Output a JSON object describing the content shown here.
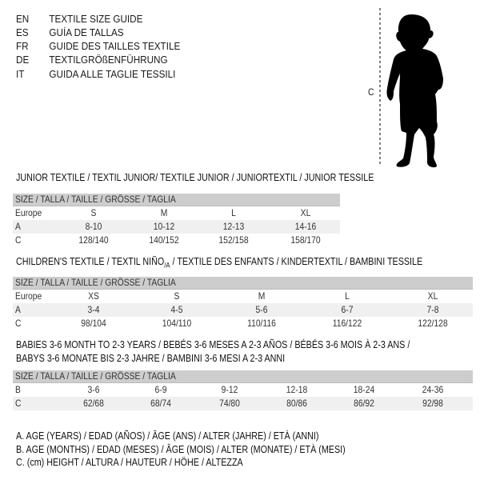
{
  "languages": [
    {
      "code": "EN",
      "title": "TEXTILE SIZE GUIDE"
    },
    {
      "code": "ES",
      "title": "GUÍA DE TALLAS"
    },
    {
      "code": "FR",
      "title": "GUIDE DES TAILLES TEXTILE"
    },
    {
      "code": "DE",
      "title": "TEXTILGRÖßENFÜHRUNG"
    },
    {
      "code": "IT",
      "title": "GUIDA ALLE TAGLIE TESSILI"
    }
  ],
  "figure": {
    "measure_label": "C",
    "icon": "child-silhouette"
  },
  "junior": {
    "title": "JUNIOR TEXTILE / TEXTIL JUNIOR/ TEXTILE JUNIOR / JUNIORTEXTIL / JUNIOR TESSILE",
    "header": "SIZE / TALLA / TAILLE / GRÖSSE / TAGLIA",
    "rows": [
      {
        "label": "Europe",
        "values": [
          "S",
          "M",
          "L",
          "XL"
        ]
      },
      {
        "label": "A",
        "values": [
          "8-10",
          "10-12",
          "12-13",
          "14-16"
        ]
      },
      {
        "label": "C",
        "values": [
          "128/140",
          "140/152",
          "152/158",
          "158/170"
        ]
      }
    ]
  },
  "children": {
    "title": "CHILDREN'S TEXTILE / TEXTIL NIÑO",
    "title_sub": "/A",
    "title_rest": " / TEXTILE DES ENFANTS / KINDERTEXTIL / BAMBINI TESSILE",
    "header": "SIZE / TALLA / TAILLE / GRÖSSE / TAGLIA",
    "rows": [
      {
        "label": "Europe",
        "values": [
          "XS",
          "S",
          "M",
          "L",
          "XL"
        ]
      },
      {
        "label": "A",
        "values": [
          "3-4",
          "4-5",
          "5-6",
          "6-7",
          "7-8"
        ]
      },
      {
        "label": "C",
        "values": [
          "98/104",
          "104/110",
          "110/116",
          "116/122",
          "122/128"
        ]
      }
    ]
  },
  "babies": {
    "title_line1": "BABIES 3-6 MONTH TO 2-3 YEARS / BEBÉS 3-6 MESES A 2-3 AÑOS / BÉBÉS 3-6 MOIS À 2-3 ANS /",
    "title_line2": "BABYS 3-6 MONATE BIS 2-3 JAHRE / BAMBINI 3-6 MESI A 2-3 ANNI",
    "header": "SIZE / TALLA / TAILLE / GRÖSSE / TAGLIA",
    "rows": [
      {
        "label": "B",
        "values": [
          "3-6",
          "6-9",
          "9-12",
          "12-18",
          "18-24",
          "24-36"
        ]
      },
      {
        "label": "C",
        "values": [
          "62/68",
          "68/74",
          "74/80",
          "80/86",
          "86/92",
          "92/98"
        ]
      }
    ]
  },
  "legend": [
    "A. AGE (YEARS) / EDAD (AÑOS) / ÂGE (ANS) / ALTER (JAHRE) / ETÀ (ANNI)",
    "B. AGE (MONTHS) / EDAD (MESES) / ÂGE (MOIS) / ALTER (MONATE) / ETÀ (MESI)",
    "C. (cm) HEIGHT / ALTURA / HAUTEUR / HÖHE / ALTEZZA"
  ]
}
